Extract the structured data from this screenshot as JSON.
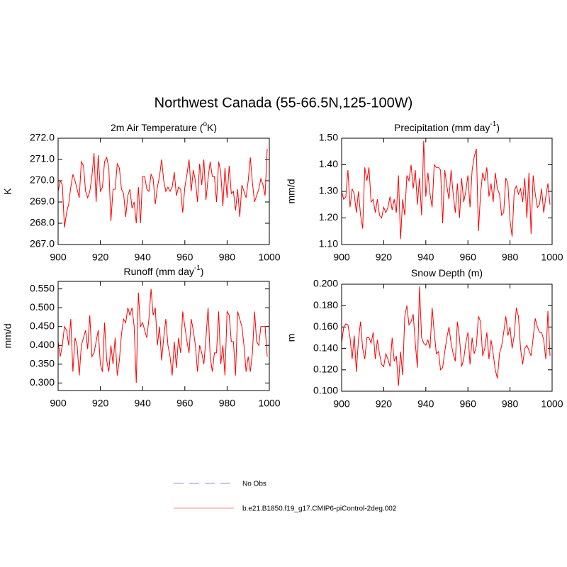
{
  "title": "Northwest Canada (55-66.5N,125-100W)",
  "legend": [
    {
      "name": "No Obs",
      "color": "#a8a8e8",
      "dash": true
    },
    {
      "name": "b.e21.B1850.f19_g17.CMIP6-piControl-2deg.002",
      "color": "#f4a0a0",
      "dash": false
    }
  ],
  "chart_data": [
    {
      "type": "line",
      "title": [
        "2m Air Temperature (",
        "o",
        "K)"
      ],
      "y_label": "K",
      "xlim": [
        900,
        1000
      ],
      "xticks": [
        900,
        920,
        940,
        960,
        980,
        1000
      ],
      "ylim": [
        267,
        272
      ],
      "yticks": [
        {
          "value": 267,
          "label": "267.0"
        },
        {
          "value": 268,
          "label": "268.0"
        },
        {
          "value": 269,
          "label": "269.0"
        },
        {
          "value": 270,
          "label": "270.0"
        },
        {
          "value": 271,
          "label": "271.0"
        },
        {
          "value": 272,
          "label": "272.0"
        }
      ],
      "x": [
        900,
        901,
        902,
        903,
        904,
        905,
        906,
        907,
        908,
        909,
        910,
        911,
        912,
        913,
        914,
        915,
        916,
        917,
        918,
        919,
        920,
        921,
        922,
        923,
        924,
        925,
        926,
        927,
        928,
        929,
        930,
        931,
        932,
        933,
        934,
        935,
        936,
        937,
        938,
        939,
        940,
        941,
        942,
        943,
        944,
        945,
        946,
        947,
        948,
        949,
        950,
        951,
        952,
        953,
        954,
        955,
        956,
        957,
        958,
        959,
        960,
        961,
        962,
        963,
        964,
        965,
        966,
        967,
        968,
        969,
        970,
        971,
        972,
        973,
        974,
        975,
        976,
        977,
        978,
        979,
        980,
        981,
        982,
        983,
        984,
        985,
        986,
        987,
        988,
        989,
        990,
        991,
        992,
        993,
        994,
        995,
        996,
        997,
        998,
        999
      ],
      "series": [
        {
          "color": "#ff0000",
          "values": [
            269.5,
            270.0,
            269.8,
            267.8,
            268.5,
            268.9,
            269.7,
            270.3,
            270.0,
            269.6,
            269.2,
            270.9,
            270.7,
            269.5,
            269.2,
            269.5,
            270.2,
            271.3,
            269.0,
            271.2,
            269.5,
            269.7,
            270.9,
            271.1,
            270.6,
            268.1,
            269.6,
            269.6,
            270.8,
            270.6,
            269.6,
            269.4,
            268.3,
            269.3,
            269.6,
            268.7,
            269.0,
            268.0,
            269.7,
            268.0,
            270.2,
            270.2,
            269.6,
            269.5,
            270.3,
            270.1,
            268.9,
            269.7,
            270.2,
            271.0,
            270.0,
            269.5,
            269.7,
            269.5,
            269.7,
            270.4,
            269.3,
            269.7,
            269.6,
            268.5,
            269.7,
            270.3,
            271.0,
            269.5,
            270.5,
            270.0,
            269.0,
            270.8,
            269.8,
            271.0,
            269.1,
            270.1,
            270.9,
            270.2,
            270.2,
            269.0,
            270.9,
            270.4,
            268.8,
            270.6,
            269.2,
            270.7,
            269.4,
            269.5,
            268.6,
            269.6,
            268.3,
            269.8,
            269.5,
            269.2,
            270.0,
            271.1,
            269.9,
            269.0,
            269.3,
            269.6,
            270.1,
            269.8,
            269.3,
            271.5
          ]
        }
      ]
    },
    {
      "type": "line",
      "title": [
        "Precipitation (mm day",
        "-1",
        ")"
      ],
      "y_label": "mm/d",
      "xlim": [
        900,
        1000
      ],
      "xticks": [
        900,
        920,
        940,
        960,
        980,
        1000
      ],
      "ylim": [
        1.1,
        1.5
      ],
      "yticks": [
        {
          "value": 1.1,
          "label": "1.10"
        },
        {
          "value": 1.2,
          "label": "1.20"
        },
        {
          "value": 1.3,
          "label": "1.30"
        },
        {
          "value": 1.4,
          "label": "1.40"
        },
        {
          "value": 1.5,
          "label": "1.50"
        }
      ],
      "x": [
        900,
        901,
        902,
        903,
        904,
        905,
        906,
        907,
        908,
        909,
        910,
        911,
        912,
        913,
        914,
        915,
        916,
        917,
        918,
        919,
        920,
        921,
        922,
        923,
        924,
        925,
        926,
        927,
        928,
        929,
        930,
        931,
        932,
        933,
        934,
        935,
        936,
        937,
        938,
        939,
        940,
        941,
        942,
        943,
        944,
        945,
        946,
        947,
        948,
        949,
        950,
        951,
        952,
        953,
        954,
        955,
        956,
        957,
        958,
        959,
        960,
        961,
        962,
        963,
        964,
        965,
        966,
        967,
        968,
        969,
        970,
        971,
        972,
        973,
        974,
        975,
        976,
        977,
        978,
        979,
        980,
        981,
        982,
        983,
        984,
        985,
        986,
        987,
        988,
        989,
        990,
        991,
        992,
        993,
        994,
        995,
        996,
        997,
        998,
        999
      ],
      "series": [
        {
          "color": "#ff0000",
          "values": [
            1.3,
            1.27,
            1.28,
            1.38,
            1.24,
            1.31,
            1.29,
            1.22,
            1.3,
            1.21,
            1.16,
            1.39,
            1.34,
            1.39,
            1.26,
            1.27,
            1.22,
            1.27,
            1.21,
            1.2,
            1.24,
            1.22,
            1.24,
            1.28,
            1.23,
            1.27,
            1.22,
            1.36,
            1.12,
            1.27,
            1.21,
            1.36,
            1.34,
            1.4,
            1.31,
            1.38,
            1.25,
            1.35,
            1.21,
            1.49,
            1.28,
            1.37,
            1.29,
            1.24,
            1.4,
            1.39,
            1.39,
            1.38,
            1.18,
            1.38,
            1.32,
            1.27,
            1.38,
            1.29,
            1.22,
            1.33,
            1.2,
            1.35,
            1.26,
            1.3,
            1.36,
            1.24,
            1.38,
            1.43,
            1.46,
            1.15,
            1.29,
            1.37,
            1.34,
            1.39,
            1.28,
            1.33,
            1.26,
            1.37,
            1.31,
            1.29,
            1.21,
            1.22,
            1.35,
            1.33,
            1.19,
            1.13,
            1.3,
            1.32,
            1.29,
            1.31,
            1.26,
            1.35,
            1.2,
            1.37,
            1.14,
            1.36,
            1.29,
            1.24,
            1.25,
            1.31,
            1.22,
            1.28,
            1.33,
            1.25
          ]
        }
      ]
    },
    {
      "type": "line",
      "title": [
        "Runoff (mm day",
        "-1",
        ")"
      ],
      "y_label": "mm/d",
      "xlim": [
        900,
        1000
      ],
      "xticks": [
        900,
        920,
        940,
        960,
        980,
        1000
      ],
      "ylim": [
        0.28,
        0.57
      ],
      "yticks": [
        {
          "value": 0.3,
          "label": "0.300"
        },
        {
          "value": 0.35,
          "label": "0.350"
        },
        {
          "value": 0.4,
          "label": "0.400"
        },
        {
          "value": 0.45,
          "label": "0.450"
        },
        {
          "value": 0.5,
          "label": "0.500"
        },
        {
          "value": 0.55,
          "label": "0.550"
        }
      ],
      "x": [
        900,
        901,
        902,
        903,
        904,
        905,
        906,
        907,
        908,
        909,
        910,
        911,
        912,
        913,
        914,
        915,
        916,
        917,
        918,
        919,
        920,
        921,
        922,
        923,
        924,
        925,
        926,
        927,
        928,
        929,
        930,
        931,
        932,
        933,
        934,
        935,
        936,
        937,
        938,
        939,
        940,
        941,
        942,
        943,
        944,
        945,
        946,
        947,
        948,
        949,
        950,
        951,
        952,
        953,
        954,
        955,
        956,
        957,
        958,
        959,
        960,
        961,
        962,
        963,
        964,
        965,
        966,
        967,
        968,
        969,
        970,
        971,
        972,
        973,
        974,
        975,
        976,
        977,
        978,
        979,
        980,
        981,
        982,
        983,
        984,
        985,
        986,
        987,
        988,
        989,
        990,
        991,
        992,
        993,
        994,
        995,
        996,
        997,
        998,
        999
      ],
      "series": [
        {
          "color": "#ff0000",
          "values": [
            0.41,
            0.37,
            0.4,
            0.45,
            0.44,
            0.4,
            0.47,
            0.33,
            0.42,
            0.4,
            0.32,
            0.4,
            0.42,
            0.44,
            0.39,
            0.48,
            0.37,
            0.38,
            0.41,
            0.44,
            0.35,
            0.33,
            0.46,
            0.36,
            0.33,
            0.4,
            0.35,
            0.42,
            0.32,
            0.36,
            0.43,
            0.47,
            0.46,
            0.5,
            0.48,
            0.5,
            0.45,
            0.3,
            0.54,
            0.45,
            0.46,
            0.44,
            0.42,
            0.47,
            0.55,
            0.48,
            0.5,
            0.4,
            0.45,
            0.36,
            0.42,
            0.47,
            0.4,
            0.37,
            0.32,
            0.41,
            0.34,
            0.42,
            0.38,
            0.49,
            0.45,
            0.41,
            0.38,
            0.47,
            0.44,
            0.4,
            0.33,
            0.4,
            0.38,
            0.35,
            0.42,
            0.5,
            0.37,
            0.33,
            0.38,
            0.38,
            0.49,
            0.35,
            0.4,
            0.32,
            0.49,
            0.48,
            0.41,
            0.41,
            0.32,
            0.49,
            0.47,
            0.45,
            0.4,
            0.33,
            0.37,
            0.33,
            0.38,
            0.49,
            0.41,
            0.4,
            0.45,
            0.45,
            0.45,
            0.37
          ]
        }
      ]
    },
    {
      "type": "line",
      "title": [
        "Snow Depth (m)"
      ],
      "y_label": "m",
      "xlim": [
        900,
        1000
      ],
      "xticks": [
        900,
        920,
        940,
        960,
        980,
        1000
      ],
      "ylim": [
        0.1,
        0.2
      ],
      "yticks": [
        {
          "value": 0.1,
          "label": "0.100"
        },
        {
          "value": 0.12,
          "label": "0.120"
        },
        {
          "value": 0.14,
          "label": "0.140"
        },
        {
          "value": 0.16,
          "label": "0.160"
        },
        {
          "value": 0.18,
          "label": "0.180"
        },
        {
          "value": 0.2,
          "label": "0.200"
        }
      ],
      "x": [
        900,
        901,
        902,
        903,
        904,
        905,
        906,
        907,
        908,
        909,
        910,
        911,
        912,
        913,
        914,
        915,
        916,
        917,
        918,
        919,
        920,
        921,
        922,
        923,
        924,
        925,
        926,
        927,
        928,
        929,
        930,
        931,
        932,
        933,
        934,
        935,
        936,
        937,
        938,
        939,
        940,
        941,
        942,
        943,
        944,
        945,
        946,
        947,
        948,
        949,
        950,
        951,
        952,
        953,
        954,
        955,
        956,
        957,
        958,
        959,
        960,
        961,
        962,
        963,
        964,
        965,
        966,
        967,
        968,
        969,
        970,
        971,
        972,
        973,
        974,
        975,
        976,
        977,
        978,
        979,
        980,
        981,
        982,
        983,
        984,
        985,
        986,
        987,
        988,
        989,
        990,
        991,
        992,
        993,
        994,
        995,
        996,
        997,
        998,
        999
      ],
      "series": [
        {
          "color": "#ff0000",
          "values": [
            0.145,
            0.16,
            0.163,
            0.162,
            0.15,
            0.13,
            0.152,
            0.118,
            0.148,
            0.165,
            0.14,
            0.13,
            0.15,
            0.15,
            0.145,
            0.155,
            0.13,
            0.148,
            0.135,
            0.125,
            0.123,
            0.135,
            0.13,
            0.123,
            0.15,
            0.128,
            0.133,
            0.105,
            0.137,
            0.115,
            0.17,
            0.18,
            0.162,
            0.165,
            0.172,
            0.145,
            0.122,
            0.198,
            0.15,
            0.145,
            0.143,
            0.148,
            0.14,
            0.178,
            0.155,
            0.135,
            0.137,
            0.12,
            0.122,
            0.137,
            0.15,
            0.16,
            0.145,
            0.135,
            0.128,
            0.165,
            0.15,
            0.123,
            0.13,
            0.145,
            0.155,
            0.125,
            0.15,
            0.135,
            0.142,
            0.17,
            0.165,
            0.133,
            0.14,
            0.155,
            0.13,
            0.148,
            0.135,
            0.12,
            0.112,
            0.135,
            0.142,
            0.155,
            0.17,
            0.152,
            0.16,
            0.14,
            0.152,
            0.178,
            0.17,
            0.14,
            0.125,
            0.14,
            0.143,
            0.138,
            0.133,
            0.15,
            0.168,
            0.16,
            0.155,
            0.155,
            0.148,
            0.13,
            0.175,
            0.133
          ]
        }
      ]
    }
  ]
}
